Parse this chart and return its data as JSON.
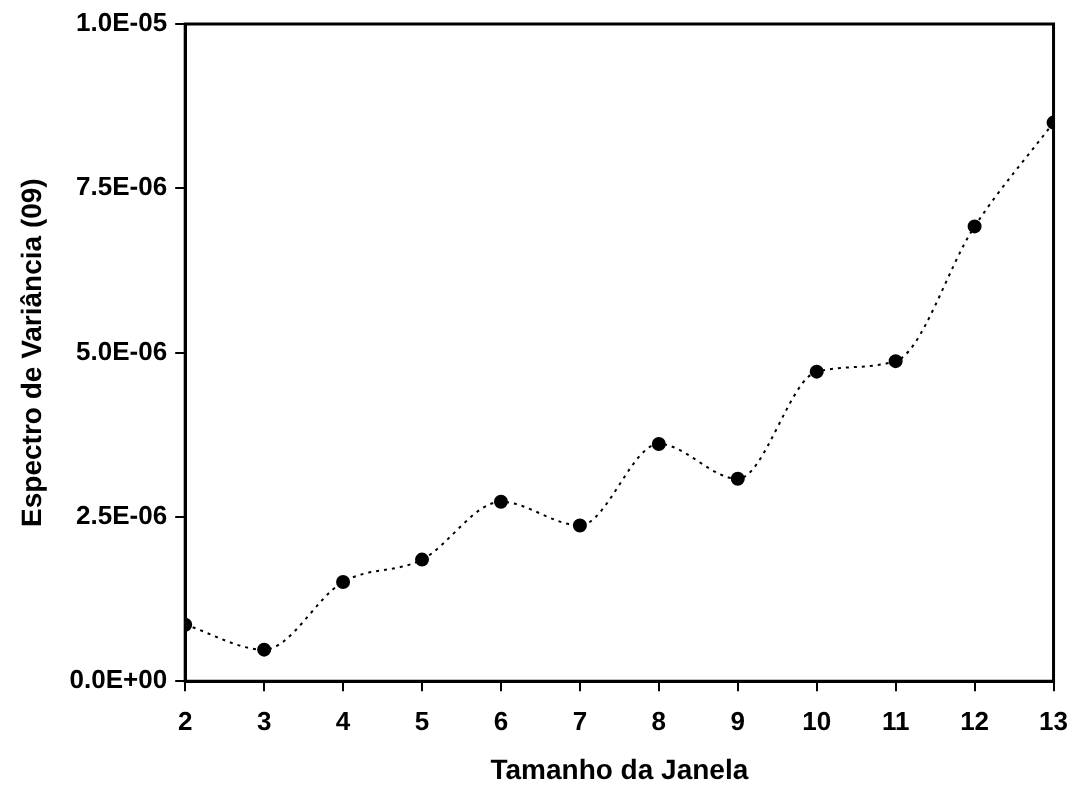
{
  "chart_data": {
    "type": "line",
    "xlabel": "Tamanho da Janela",
    "ylabel": "Espectro de Variância (09)",
    "x": [
      2,
      3,
      4,
      5,
      6,
      7,
      8,
      9,
      10,
      11,
      12,
      13
    ],
    "series": [
      {
        "color": "#000000",
        "values": [
          8.6e-07,
          4.8e-07,
          1.51e-06,
          1.85e-06,
          2.73e-06,
          2.37e-06,
          3.61e-06,
          3.08e-06,
          4.71e-06,
          4.87e-06,
          6.92e-06,
          8.5e-06
        ]
      }
    ],
    "xlim": [
      2,
      13
    ],
    "xticks": [
      2,
      3,
      4,
      5,
      6,
      7,
      8,
      9,
      10,
      11,
      12,
      13
    ],
    "ylim": [
      0,
      1e-05
    ],
    "yticks": [
      {
        "value": 0,
        "label": "0.0E+00"
      },
      {
        "value": 2.5e-06,
        "label": "2.5E-06"
      },
      {
        "value": 5e-06,
        "label": "5.0E-06"
      },
      {
        "value": 7.5e-06,
        "label": "7.5E-06"
      },
      {
        "value": 1e-05,
        "label": "1.0E-05"
      }
    ],
    "grid": false,
    "legend": false,
    "marker": "circle",
    "line_style": "dotted"
  }
}
